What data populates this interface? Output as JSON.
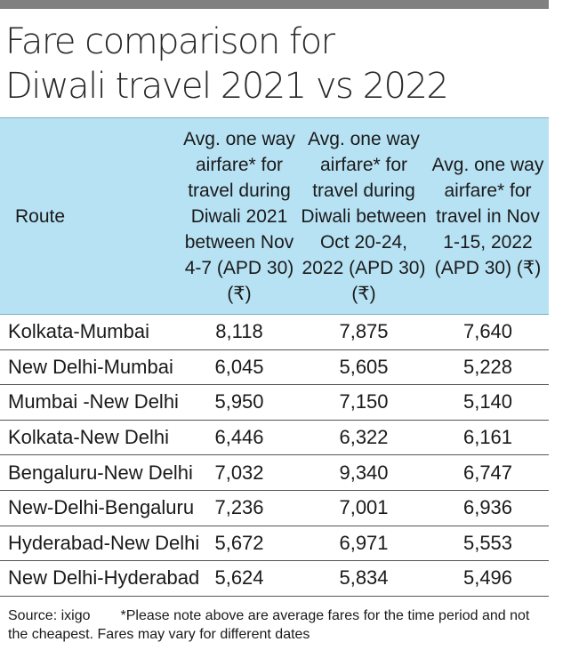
{
  "title": {
    "line1": "Fare comparison for",
    "line2": "Diwali travel 2021 vs 2022"
  },
  "table": {
    "headers": {
      "route": "Route",
      "col2021": "Avg. one way airfare* for travel during Diwali 2021 between Nov 4-7 (APD 30) (₹)",
      "col2022": "Avg. one way airfare* for travel during Diwali between Oct 20-24, 2022 (APD 30) (₹)",
      "colNov": "Avg. one way airfare* for travel in Nov 1-15, 2022 (APD 30) (₹)"
    },
    "rows": [
      {
        "route": "Kolkata-Mumbai",
        "v2021": "8,118",
        "v2022": "7,875",
        "vNov": "7,640"
      },
      {
        "route": "New Delhi-Mumbai",
        "v2021": "6,045",
        "v2022": "5,605",
        "vNov": "5,228"
      },
      {
        "route": "Mumbai -New Delhi",
        "v2021": "5,950",
        "v2022": "7,150",
        "vNov": "5,140"
      },
      {
        "route": "Kolkata-New Delhi",
        "v2021": "6,446",
        "v2022": "6,322",
        "vNov": "6,161"
      },
      {
        "route": "Bengaluru-New Delhi",
        "v2021": "7,032",
        "v2022": "9,340",
        "vNov": "6,747"
      },
      {
        "route": "New-Delhi-Bengaluru",
        "v2021": "7,236",
        "v2022": "7,001",
        "vNov": "6,936"
      },
      {
        "route": "Hyderabad-New Delhi",
        "v2021": "5,672",
        "v2022": "6,971",
        "vNov": "5,553"
      },
      {
        "route": "New Delhi-Hyderabad",
        "v2021": "5,624",
        "v2022": "5,834",
        "vNov": "5,496"
      }
    ]
  },
  "footer": {
    "source": "Source: ixigo",
    "note": "*Please note above are average fares for the time period and not the cheapest. Fares may vary for different dates"
  },
  "colors": {
    "header_bg": "#b7e2f4",
    "top_bar": "#808080"
  }
}
